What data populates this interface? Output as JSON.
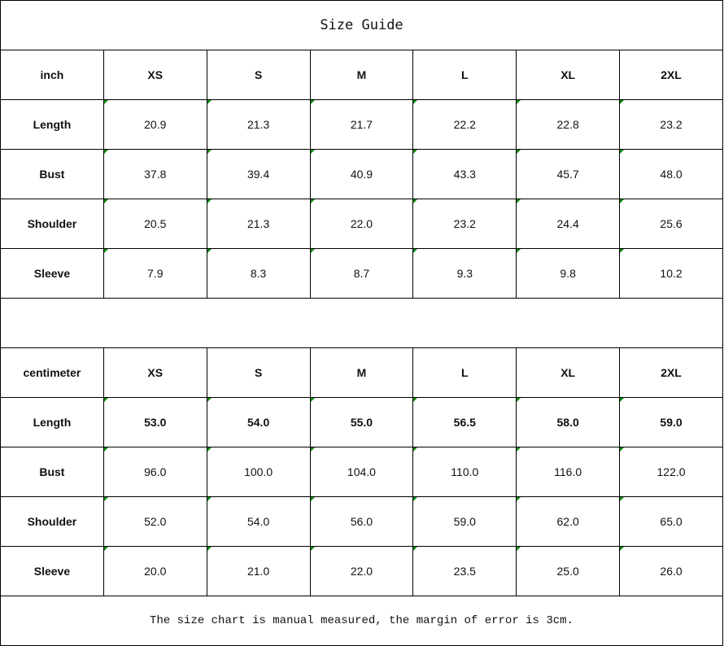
{
  "title": "Size Guide",
  "marker_color": "#0a8a0a",
  "tables": [
    {
      "unit": "inch",
      "sizes": [
        "XS",
        "S",
        "M",
        "L",
        "XL",
        "2XL"
      ],
      "rows": [
        {
          "label": "Length",
          "values": [
            "20.9",
            "21.3",
            "21.7",
            "22.2",
            "22.8",
            "23.2"
          ]
        },
        {
          "label": "Bust",
          "values": [
            "37.8",
            "39.4",
            "40.9",
            "43.3",
            "45.7",
            "48.0"
          ]
        },
        {
          "label": "Shoulder",
          "values": [
            "20.5",
            "21.3",
            "22.0",
            "23.2",
            "24.4",
            "25.6"
          ]
        },
        {
          "label": "Sleeve",
          "values": [
            "7.9",
            "8.3",
            "8.7",
            "9.3",
            "9.8",
            "10.2"
          ]
        }
      ]
    },
    {
      "unit": "centimeter",
      "sizes": [
        "XS",
        "S",
        "M",
        "L",
        "XL",
        "2XL"
      ],
      "rows": [
        {
          "label": "Length",
          "values": [
            "53.0",
            "54.0",
            "55.0",
            "56.5",
            "58.0",
            "59.0"
          ],
          "bold": true
        },
        {
          "label": "Bust",
          "values": [
            "96.0",
            "100.0",
            "104.0",
            "110.0",
            "116.0",
            "122.0"
          ]
        },
        {
          "label": "Shoulder",
          "values": [
            "52.0",
            "54.0",
            "56.0",
            "59.0",
            "62.0",
            "65.0"
          ]
        },
        {
          "label": "Sleeve",
          "values": [
            "20.0",
            "21.0",
            "22.0",
            "23.5",
            "25.0",
            "26.0"
          ]
        }
      ]
    }
  ],
  "note": "The size chart is manual measured, the margin of error is 3cm."
}
